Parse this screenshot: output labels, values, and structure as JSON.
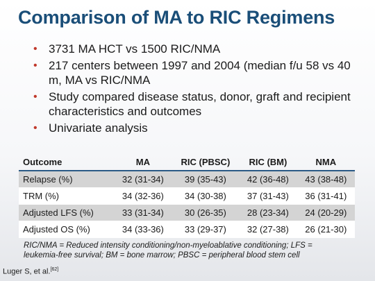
{
  "slide": {
    "title": "Comparison of MA to RIC Regimens",
    "bullets": [
      "3731 MA HCT  vs 1500 RIC/NMA",
      "217 centers between 1997 and 2004 (median f/u 58 vs 40 m, MA vs RIC/NMA",
      "Study compared disease status, donor, graft and recipient characteristics and outcomes",
      "Univariate analysis"
    ],
    "bullet_color": "#c0392b",
    "title_color": "#1a4e78"
  },
  "table": {
    "headers": [
      "Outcome",
      "MA",
      "RIC (PBSC)",
      "RIC (BM)",
      "NMA"
    ],
    "rows": [
      [
        "Relapse (%)",
        "32 (31-34)",
        "39 (35-43)",
        "42 (36-48)",
        "43 (38-48)"
      ],
      [
        "TRM (%)",
        "34 (32-36)",
        "34 (30-38)",
        "37 (31-43)",
        "36 (31-41)"
      ],
      [
        "Adjusted LFS (%)",
        "33 (31-34)",
        "30 (26-35)",
        "28 (23-34)",
        "24 (20-29)"
      ],
      [
        "Adjusted OS (%)",
        "34 (33-36)",
        "33 (29-37)",
        "32 (27-38)",
        "26 (21-30)"
      ]
    ]
  },
  "footnote": "RIC/NMA = Reduced intensity conditioning/non-myeloablative conditioning; LFS = leukemia-free survival; BM = bone marrow; PBSC = peripheral blood stem cell",
  "citation": {
    "text": "Luger S, et al.",
    "ref": "[62]"
  }
}
